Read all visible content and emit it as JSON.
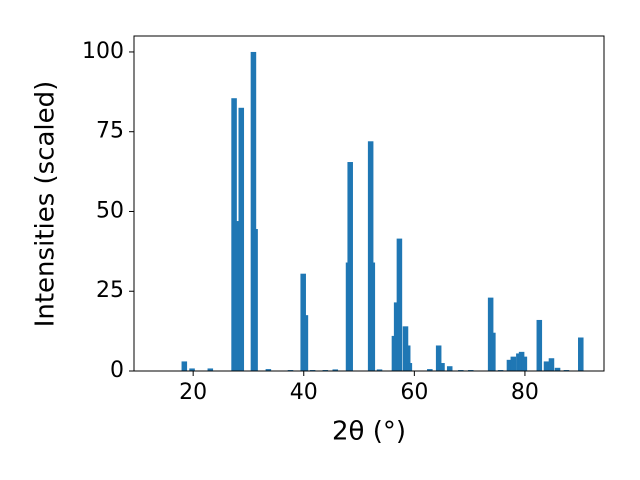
{
  "chart_data": {
    "type": "bar",
    "xlabel": "2θ (°)",
    "ylabel": "Intensities (scaled)",
    "x": [
      18.4,
      19.8,
      23.1,
      27.4,
      27.8,
      28.7,
      30.9,
      31.2,
      33.6,
      37.6,
      39.9,
      40.3,
      41.6,
      43.9,
      45.7,
      48.1,
      48.4,
      52.1,
      52.4,
      53.7,
      56.4,
      56.8,
      57.3,
      58.4,
      58.8,
      59.1,
      62.8,
      64.4,
      65.0,
      66.4,
      68.4,
      70.2,
      73.8,
      74.2,
      75.6,
      77.2,
      77.9,
      78.9,
      79.4,
      79.9,
      82.6,
      83.9,
      84.8,
      85.9,
      87.5,
      90.1
    ],
    "values": [
      3,
      0.8,
      0.8,
      85.5,
      47,
      82.5,
      100,
      44.5,
      0.6,
      0.3,
      30.5,
      17.5,
      0.3,
      0.3,
      0.5,
      34,
      65.5,
      72,
      34,
      0.5,
      11,
      21.5,
      41.5,
      14,
      8,
      2.5,
      0.6,
      8,
      2.5,
      1.5,
      0.3,
      0.3,
      23,
      12,
      0.3,
      3.5,
      4.5,
      5.5,
      6,
      4.5,
      16,
      3,
      4,
      1,
      0.3,
      10.5
    ],
    "color": "#1f77b4",
    "xlim": [
      9.3,
      94.3
    ],
    "xticks": [
      20,
      40,
      60,
      80
    ],
    "ylim": [
      0,
      105
    ],
    "yticks": [
      0,
      25,
      50,
      75,
      100
    ],
    "grid": false
  }
}
